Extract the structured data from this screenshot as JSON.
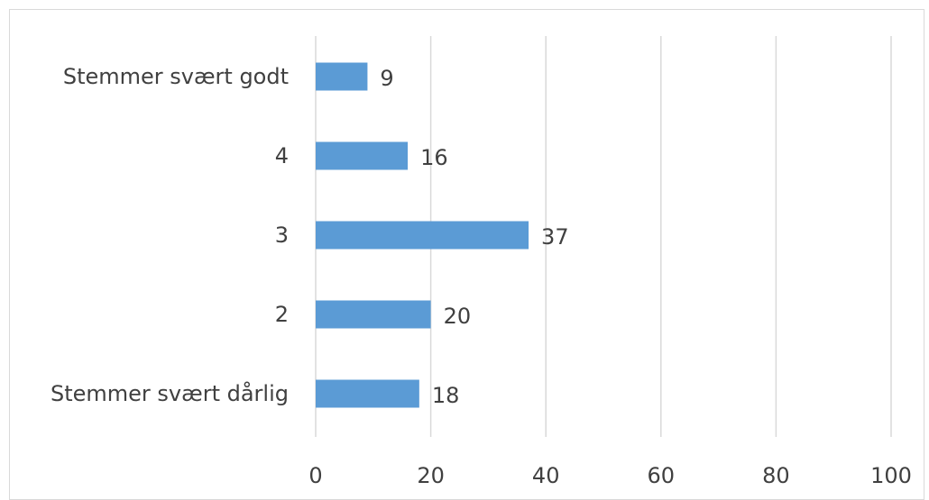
{
  "chart_data": {
    "type": "bar",
    "orientation": "horizontal",
    "title": "",
    "xlabel": "",
    "ylabel": "",
    "categories": [
      "Stemmer svært godt",
      "4",
      "3",
      "2",
      "Stemmer svært dårlig"
    ],
    "values": [
      9,
      16,
      37,
      20,
      18
    ],
    "data_labels": [
      "9",
      "16",
      "37",
      "20",
      "18"
    ],
    "xlim": [
      0,
      100
    ],
    "x_ticks": [
      0,
      20,
      40,
      60,
      80,
      100
    ],
    "x_tick_labels": [
      "0",
      "20",
      "40",
      "60",
      "80",
      "100"
    ],
    "grid": "vertical",
    "legend": "none",
    "bar_color": "#5b9bd5",
    "grid_color": "#d9d9d9",
    "text_color": "#404040"
  }
}
